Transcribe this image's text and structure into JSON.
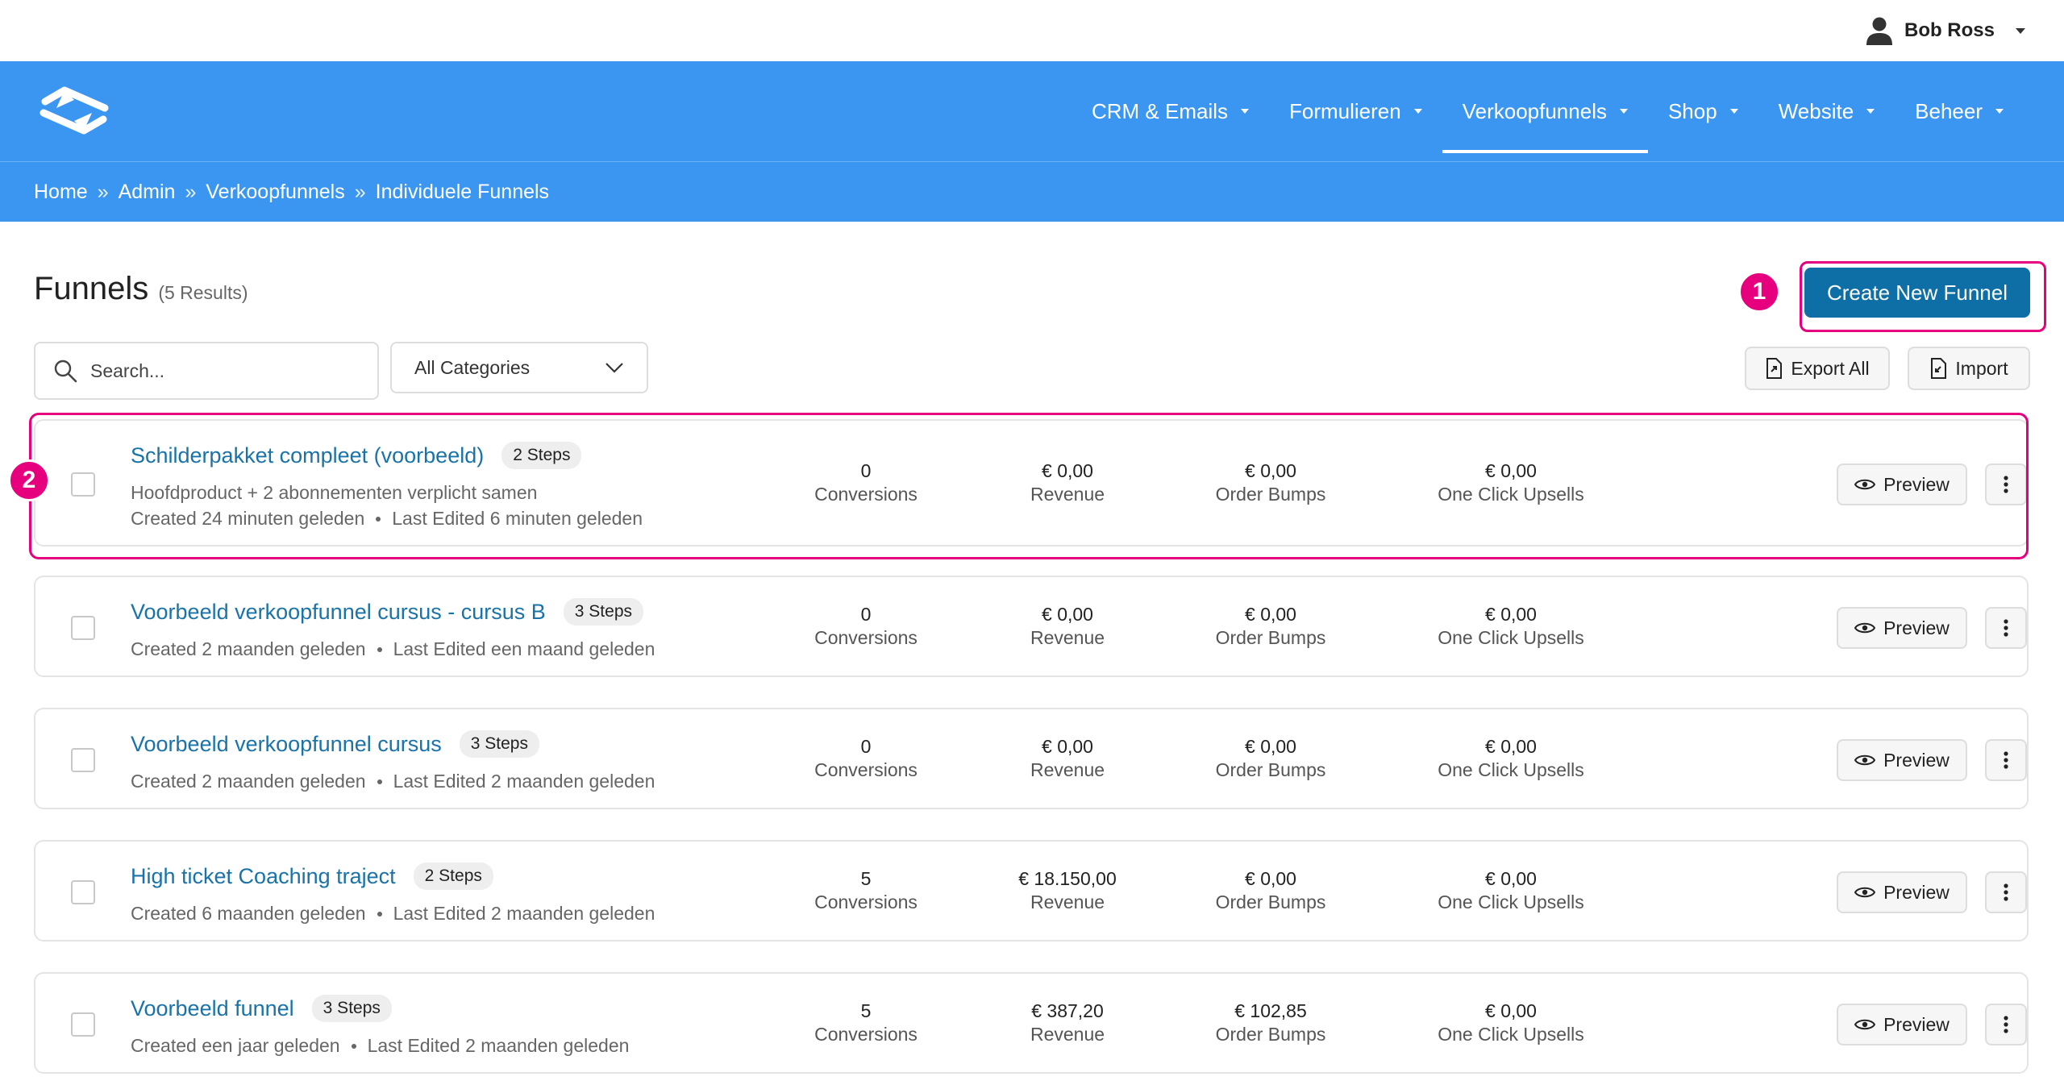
{
  "user": {
    "name": "Bob Ross",
    "icon": "user-icon"
  },
  "nav": {
    "logo": "logo-icon",
    "items": [
      {
        "label": "CRM & Emails",
        "active": false
      },
      {
        "label": "Formulieren",
        "active": false
      },
      {
        "label": "Verkoopfunnels",
        "active": true
      },
      {
        "label": "Shop",
        "active": false
      },
      {
        "label": "Website",
        "active": false
      },
      {
        "label": "Beheer",
        "active": false
      }
    ]
  },
  "breadcrumb": [
    "Home",
    "Admin",
    "Verkoopfunnels",
    "Individuele Funnels"
  ],
  "page": {
    "title": "Funnels",
    "count": "(5 Results)"
  },
  "actions": {
    "create": "Create New Funnel",
    "export": "Export All",
    "import": "Import"
  },
  "filters": {
    "search_placeholder": "Search...",
    "category": "All Categories"
  },
  "annotations": [
    "1",
    "2"
  ],
  "labels": {
    "conversions": "Conversions",
    "revenue": "Revenue",
    "order_bumps": "Order Bumps",
    "upsells": "One Click Upsells",
    "preview": "Preview"
  },
  "funnels": [
    {
      "name": "Schilderpakket compleet (voorbeeld)",
      "steps": "2 Steps",
      "description": "Hoofdproduct + 2 abonnementen verplicht samen",
      "created": "Created 24 minuten geleden",
      "edited": "Last Edited 6 minuten geleden",
      "conversions": "0",
      "revenue": "€ 0,00",
      "order_bumps": "€ 0,00",
      "upsells": "€ 0,00"
    },
    {
      "name": "Voorbeeld verkoopfunnel cursus - cursus B",
      "steps": "3 Steps",
      "description": "",
      "created": "Created 2 maanden geleden",
      "edited": "Last Edited een maand geleden",
      "conversions": "0",
      "revenue": "€ 0,00",
      "order_bumps": "€ 0,00",
      "upsells": "€ 0,00"
    },
    {
      "name": "Voorbeeld verkoopfunnel cursus",
      "steps": "3 Steps",
      "description": "",
      "created": "Created 2 maanden geleden",
      "edited": "Last Edited 2 maanden geleden",
      "conversions": "0",
      "revenue": "€ 0,00",
      "order_bumps": "€ 0,00",
      "upsells": "€ 0,00"
    },
    {
      "name": "High ticket Coaching traject",
      "steps": "2 Steps",
      "description": "",
      "created": "Created 6 maanden geleden",
      "edited": "Last Edited 2 maanden geleden",
      "conversions": "5",
      "revenue": "€ 18.150,00",
      "order_bumps": "€ 0,00",
      "upsells": "€ 0,00"
    },
    {
      "name": "Voorbeeld funnel",
      "steps": "3 Steps",
      "description": "",
      "created": "Created een jaar geleden",
      "edited": "Last Edited 2 maanden geleden",
      "conversions": "5",
      "revenue": "€ 387,20",
      "order_bumps": "€ 102,85",
      "upsells": "€ 0,00"
    }
  ],
  "colors": {
    "nav": "#3b96f2",
    "primary": "#0e6fa6",
    "link": "#1a73a8",
    "highlight": "#e6007e"
  }
}
